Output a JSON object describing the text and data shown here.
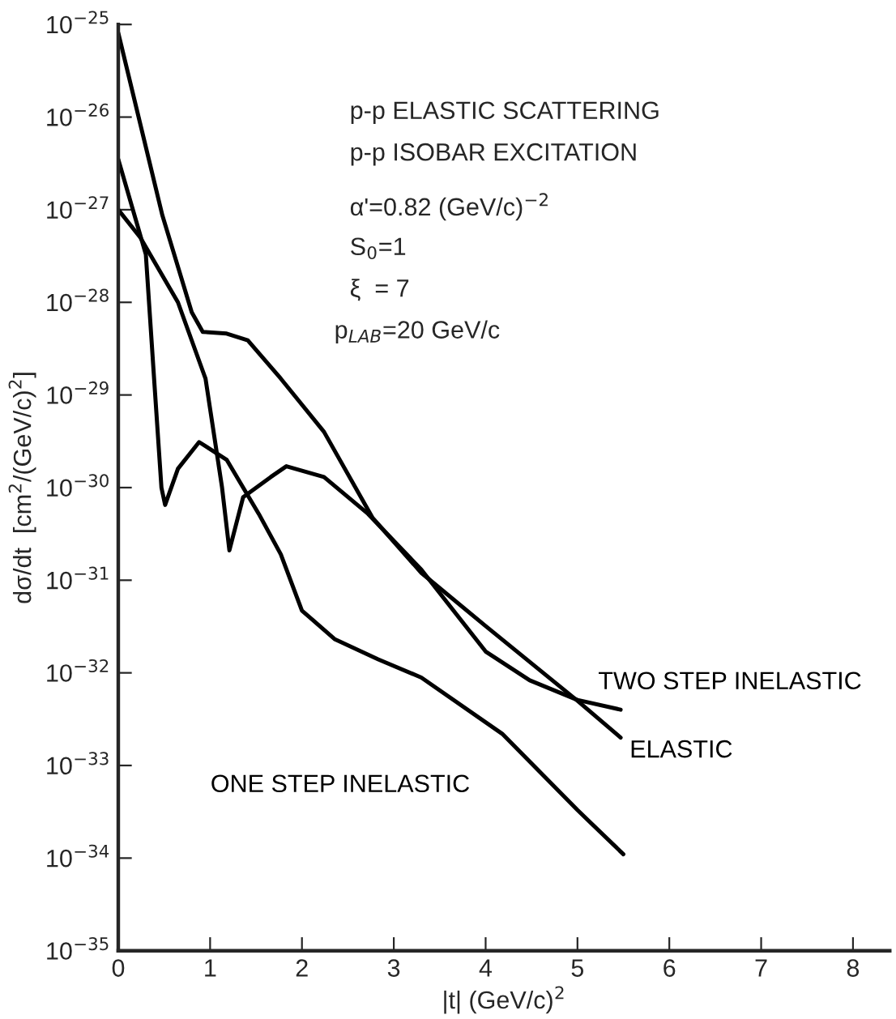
{
  "chart_data": {
    "type": "line",
    "xlabel": "|t| (GeV/c)$^{2}$",
    "ylabel": "dσ/dt  [cm$^{2}$/(GeV/c)$^{2}$]",
    "annotations": [
      "p-p ELASTIC SCATTERING",
      "p-p ISOBAR EXCITATION",
      "α'=0.82 (GeV/c)$^{−2}$",
      "S$_{0}$=1",
      "ξ  = 7",
      "p$_{LAB}$=20 GeV/c"
    ],
    "log": "y",
    "grid": false,
    "legend": false,
    "marker": "none",
    "line_style": "solid",
    "xlim": [
      0,
      8.4
    ],
    "xticks": [
      0,
      1,
      2,
      3,
      4,
      5,
      6,
      7,
      8
    ],
    "ylim": [
      1e-35,
      1e-25
    ],
    "yticks": [
      {
        "value": 1e-35,
        "label": "10$^{−35}$"
      },
      {
        "value": 1e-34,
        "label": "10$^{−34}$"
      },
      {
        "value": 1e-33,
        "label": "10$^{−33}$"
      },
      {
        "value": 1e-32,
        "label": "10$^{−32}$"
      },
      {
        "value": 1e-31,
        "label": "10$^{−31}$"
      },
      {
        "value": 1e-30,
        "label": "10$^{−30}$"
      },
      {
        "value": 1e-29,
        "label": "10$^{−29}$"
      },
      {
        "value": 1e-28,
        "label": "10$^{−28}$"
      },
      {
        "value": 1e-27,
        "label": "10$^{−27}$"
      },
      {
        "value": 1e-26,
        "label": "10$^{−26}$"
      },
      {
        "value": 1e-25,
        "label": "10$^{−25}$"
      }
    ],
    "series": [
      {
        "name": "ELASTIC",
        "color": "#000000",
        "x": [
          0,
          0.48,
          0.8,
          0.92,
          1.18,
          1.41,
          1.77,
          2.24,
          2.77,
          3.3,
          4.0,
          5.0,
          5.47
        ],
        "values": [
          8.1e-26,
          8.7e-28,
          7.8e-29,
          4.8e-29,
          4.6e-29,
          3.9e-29,
          1.5e-29,
          4e-30,
          4.7e-31,
          1.2e-31,
          3.2e-32,
          5e-33,
          2e-33
        ]
      },
      {
        "name": "TWO STEP INELASTIC",
        "color": "#000000",
        "x": [
          0,
          0.24,
          0.65,
          0.95,
          1.13,
          1.21,
          1.36,
          1.66,
          1.83,
          2.24,
          2.72,
          3.3,
          4.0,
          4.48,
          5.0,
          5.47
        ],
        "values": [
          1e-27,
          5e-28,
          1e-28,
          1.5e-29,
          1e-30,
          2.1e-31,
          7.9e-31,
          1.3e-30,
          1.7e-30,
          1.3e-30,
          5.2e-31,
          1.3e-31,
          1.7e-32,
          8.3e-33,
          5.1e-33,
          4e-33
        ]
      },
      {
        "name": "ONE STEP INELASTIC",
        "color": "#000000",
        "x": [
          0,
          0.3,
          0.39,
          0.47,
          0.51,
          0.65,
          0.88,
          1.18,
          1.53,
          1.77,
          2.0,
          2.36,
          2.83,
          3.3,
          4.18,
          5.0,
          5.5
        ],
        "values": [
          3.5e-27,
          3.3e-28,
          1.5e-29,
          1e-30,
          6.5e-31,
          1.6e-30,
          3.1e-30,
          2e-30,
          5.2e-31,
          1.9e-31,
          4.7e-32,
          2.3e-32,
          1.4e-32,
          8.9e-33,
          2.2e-33,
          3.3e-34,
          1.1e-34
        ]
      }
    ]
  }
}
